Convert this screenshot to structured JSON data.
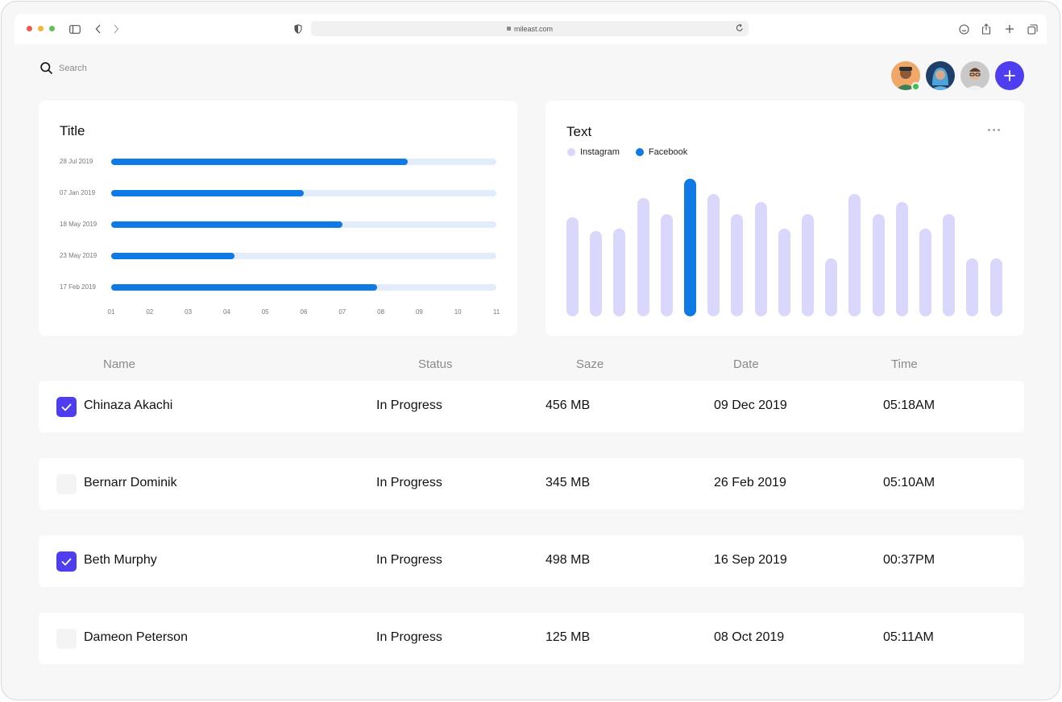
{
  "browser": {
    "url": "mileast.com"
  },
  "header": {
    "search_placeholder": "Search"
  },
  "colors": {
    "accent": "#4F3EF0",
    "bar_primary": "#0F7AE5",
    "bar_track": "#E3ECFB",
    "bar_light": "#D9D7FB",
    "online": "#3CC14A"
  },
  "left_card": {
    "title": "Title"
  },
  "right_card": {
    "title": "Text",
    "legend": [
      {
        "label": "Instagram",
        "color": "#D9D7FB"
      },
      {
        "label": "Facebook",
        "color": "#0F7AE5"
      }
    ]
  },
  "chart_data": [
    {
      "type": "bar",
      "orientation": "horizontal",
      "title": "Title",
      "categories": [
        "28 Jul 2019",
        "07 Jan 2019",
        "18 May 2019",
        "23 May 2019",
        "17 Feb 2019"
      ],
      "values": [
        8.7,
        6.0,
        7.0,
        4.2,
        7.9
      ],
      "xticks": [
        "01",
        "02",
        "03",
        "04",
        "05",
        "06",
        "07",
        "08",
        "09",
        "10",
        "11"
      ],
      "xlim": [
        1,
        11
      ],
      "grid": false
    },
    {
      "type": "bar",
      "title": "Text",
      "legend": "top-left",
      "series_names": [
        "Instagram",
        "Facebook"
      ],
      "values": [
        72,
        62,
        64,
        86,
        74,
        100,
        89,
        74,
        83,
        64,
        74,
        42,
        89,
        74,
        83,
        64,
        74,
        42,
        42
      ],
      "highlight_index": 5,
      "ylim": [
        0,
        100
      ],
      "grid": false
    }
  ],
  "table": {
    "headers": {
      "name": "Name",
      "status": "Status",
      "size": "Saze",
      "date": "Date",
      "time": "Time"
    },
    "rows": [
      {
        "name": "Chinaza Akachi",
        "status": "In Progress",
        "size": "456 MB",
        "date": "09 Dec 2019",
        "time": "05:18AM",
        "checked": true
      },
      {
        "name": "Bernarr Dominik",
        "status": "In Progress",
        "size": "345 MB",
        "date": "26 Feb 2019",
        "time": "05:10AM",
        "checked": false
      },
      {
        "name": "Beth Murphy",
        "status": "In Progress",
        "size": "498 MB",
        "date": "16 Sep 2019",
        "time": "00:37PM",
        "checked": true
      },
      {
        "name": "Dameon Peterson",
        "status": "In Progress",
        "size": "125 MB",
        "date": "08 Oct 2019",
        "time": "05:11AM",
        "checked": false
      }
    ]
  }
}
